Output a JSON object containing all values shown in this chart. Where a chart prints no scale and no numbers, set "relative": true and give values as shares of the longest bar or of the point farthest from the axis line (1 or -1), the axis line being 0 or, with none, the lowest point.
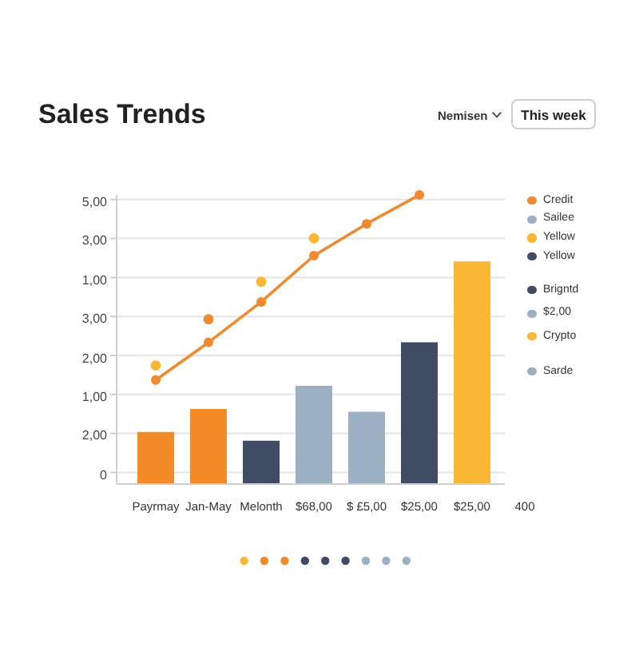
{
  "chart_data": {
    "type": "bar",
    "title": "Sales Trends",
    "annotations": [
      "Nemisen",
      "This week",
      "5,00",
      "3,00",
      "1,00",
      "3,00",
      "2,00",
      "1,00",
      "2,00",
      "0"
    ],
    "categories": [
      "Payrmay",
      "Jan-May",
      "Melonth",
      "$68,00",
      "$ £5,00",
      "$25,00",
      "$25,00",
      "400"
    ],
    "relative": true,
    "series": [
      {
        "color": "#f28a25",
        "values": [
          0.18,
          0.26,
          null,
          null,
          null,
          null,
          null,
          null
        ]
      },
      {
        "name": "Credit",
        "type": "line",
        "color": "#f08a2c",
        "values": [
          0.36,
          0.49,
          0.63,
          0.79,
          0.9,
          1,
          null,
          null
        ]
      },
      {
        "name": "Sailee",
        "color": "#9cb0c3",
        "values": [
          null,
          null,
          null,
          0.34,
          null,
          null,
          null,
          null
        ]
      },
      {
        "name": "Yellow",
        "type": "scatter",
        "color": "#f9b733",
        "colors": [
          "#f9b733",
          "#f08a2c",
          "#f9b733",
          "#f9b733",
          null,
          null,
          null,
          null
        ],
        "values": [
          0.41,
          0.57,
          0.7,
          0.85,
          null,
          null,
          null,
          null
        ]
      },
      {
        "name": "Yellow",
        "color": "#3f4c63",
        "values": [
          null,
          null,
          0.15,
          null,
          null,
          null,
          null,
          null
        ]
      },
      {
        "name": "Brigntd",
        "color": "#3f4c63",
        "values": [
          null,
          null,
          null,
          null,
          null,
          0.49,
          null,
          null
        ]
      },
      {
        "name": "$2,00",
        "color": "#9cb0c3",
        "values": [
          null,
          null,
          null,
          null,
          0.25,
          null,
          null,
          null
        ]
      },
      {
        "name": "Crypto",
        "color": "#f9b733",
        "values": [
          null,
          null,
          null,
          null,
          null,
          null,
          0.77,
          null
        ]
      },
      {
        "name": "Sarde",
        "color": "#9cb0c3",
        "values": [
          null,
          null,
          null,
          null,
          null,
          null,
          null,
          null
        ]
      }
    ],
    "grid": "y",
    "legend": "right",
    "marker": "circle"
  }
}
